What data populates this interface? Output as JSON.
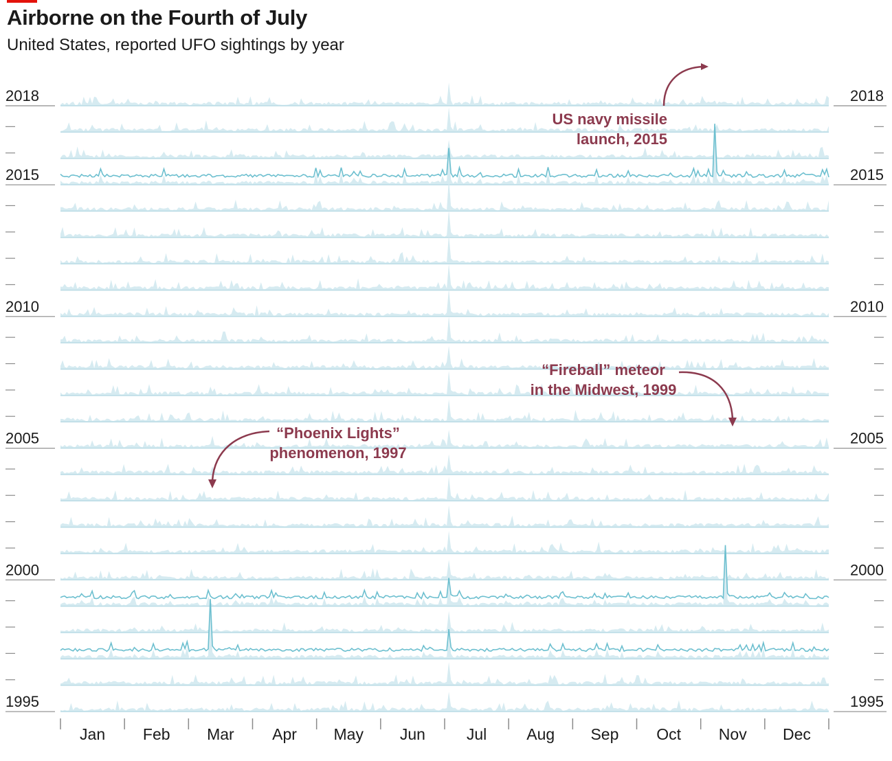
{
  "title": "Airborne on the Fourth of July",
  "subtitle": "United States, reported UFO sightings by year",
  "colors": {
    "line": "#6cbfcf",
    "fill": "#d6ebf1",
    "baseline": "#b9dbe5",
    "annotation": "#8c3a4e",
    "axis": "#8a8a8a"
  },
  "chart_data": {
    "type": "area",
    "title": "Airborne on the Fourth of July",
    "subtitle": "United States, reported UFO sightings by year",
    "x_axis": {
      "type": "day-of-year",
      "month_labels": [
        "Jan",
        "Feb",
        "Mar",
        "Apr",
        "May",
        "Jun",
        "Jul",
        "Aug",
        "Sep",
        "Oct",
        "Nov",
        "Dec"
      ]
    },
    "years": [
      2018,
      2017,
      2016,
      2015,
      2014,
      2013,
      2012,
      2011,
      2010,
      2009,
      2008,
      2007,
      2006,
      2005,
      2004,
      2003,
      2002,
      2001,
      2000,
      1999,
      1998,
      1997,
      1996,
      1995
    ],
    "year_tick_labels_left": [
      "2018",
      "2015",
      "2010",
      "2005",
      "2000",
      "1995"
    ],
    "year_tick_labels_right": [
      "2018",
      "2015",
      "2010",
      "2005",
      "2000",
      "1995"
    ],
    "highlighted_years": [
      2015,
      1999,
      1997
    ],
    "spikes": [
      {
        "date": "07-04",
        "note": "Fourth of July spike in most years",
        "relative_height": 1.0
      },
      {
        "year": 2015,
        "date": "11-07",
        "relative_height": 1.7,
        "annotation": "US navy missile launch, 2015"
      },
      {
        "year": 1999,
        "date": "11-12",
        "relative_height": 1.7,
        "annotation": "“Fireball” meteor in the Midwest, 1999"
      },
      {
        "year": 1997,
        "date": "03-13",
        "relative_height": 1.6,
        "annotation": "“Phoenix Lights” phenomenon, 1997"
      }
    ]
  },
  "annotations": {
    "navy": [
      "US navy missile",
      "launch, 2015"
    ],
    "fireball": [
      "“Fireball” meteor",
      "in the Midwest, 1999"
    ],
    "phoenix": [
      "“Phoenix Lights”",
      "phenomenon, 1997"
    ]
  }
}
